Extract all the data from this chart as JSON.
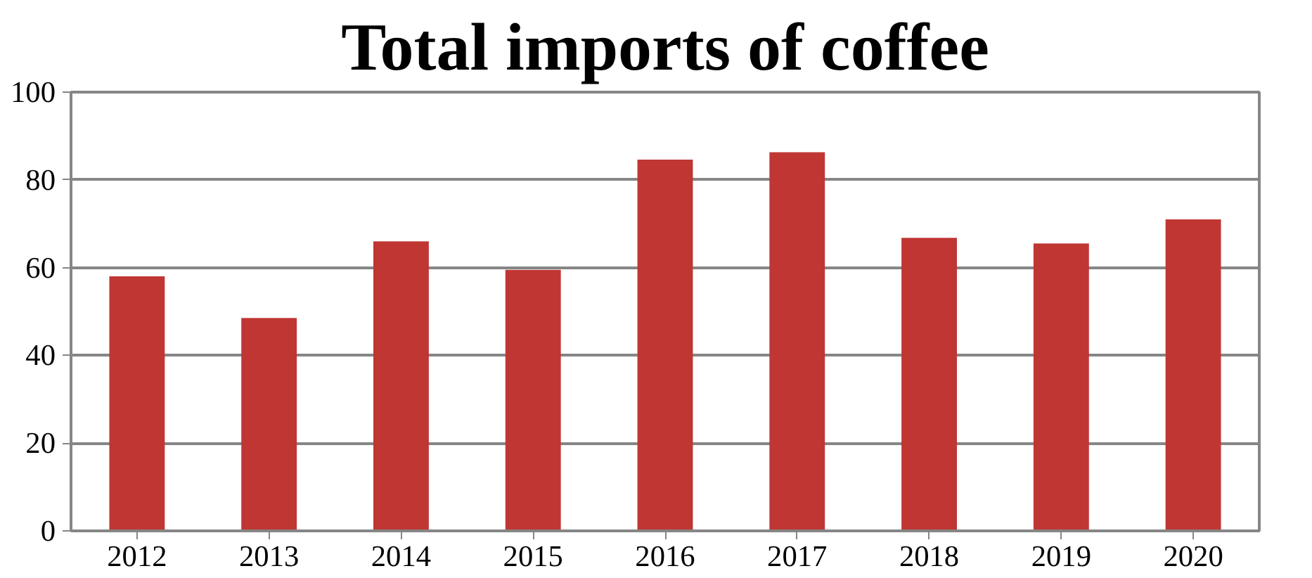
{
  "chart_data": {
    "type": "bar",
    "title": "Total imports of coffee",
    "categories": [
      "2012",
      "2013",
      "2014",
      "2015",
      "2016",
      "2017",
      "2018",
      "2019",
      "2020"
    ],
    "values": [
      58,
      48.5,
      66,
      59.5,
      84.6,
      86.3,
      66.8,
      65.5,
      71
    ],
    "color": "#bf3633",
    "ylim": [
      0,
      100
    ],
    "yticks": [
      0,
      20,
      40,
      60,
      80,
      100
    ],
    "grid": "y"
  }
}
